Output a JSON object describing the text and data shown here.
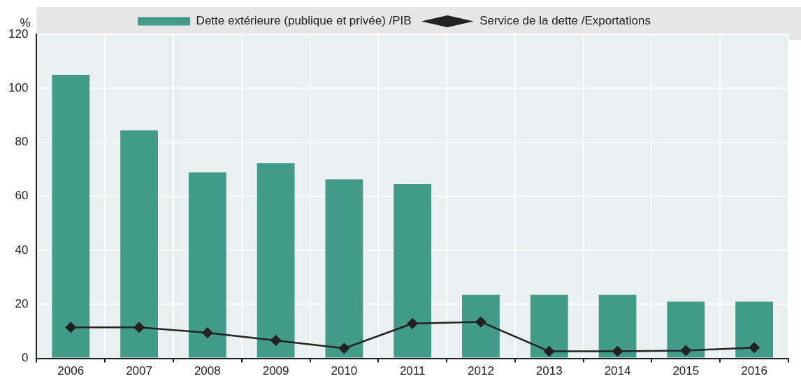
{
  "chart_data": {
    "type": "bar",
    "ylabel": "%",
    "categories": [
      "2006",
      "2007",
      "2008",
      "2009",
      "2010",
      "2011",
      "2012",
      "2013",
      "2014",
      "2015",
      "2016"
    ],
    "series": [
      {
        "name": "Dette extérieure (publique et privée) /PIB",
        "color": "#429a88",
        "values": [
          105,
          84.4,
          68.9,
          72.3,
          66.3,
          64.6,
          23.5,
          23.5,
          23.5,
          21,
          21
        ]
      },
      {
        "name": "Service de la dette /Exportations",
        "type": "line",
        "color": "#222222",
        "marker": "diamond",
        "values": [
          11.5,
          11.5,
          9.5,
          6.6,
          3.7,
          12.9,
          13.5,
          2.6,
          2.6,
          2.9,
          4.0
        ]
      }
    ],
    "ylim": [
      0,
      120
    ],
    "yticks": [
      0,
      20,
      40,
      60,
      80,
      100,
      120
    ],
    "grid": true,
    "legend": "top"
  }
}
